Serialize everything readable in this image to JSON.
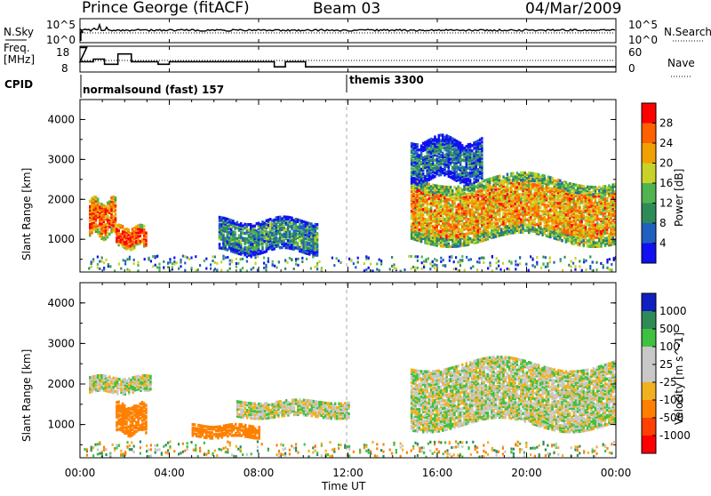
{
  "header": {
    "station": "Prince George (fitACF)",
    "beam": "Beam 03",
    "date": "04/Mar/2009"
  },
  "noise_panel": {
    "left_label": "N.Sky",
    "right_label": "N.Search",
    "left_ticks": [
      "10^5",
      "10^0"
    ],
    "right_ticks": [
      "10^5",
      "10^0"
    ]
  },
  "freq_panel": {
    "left_label_1": "Freq.",
    "left_label_2": "[MHz]",
    "right_label": "Nave",
    "left_ticks": [
      "18",
      "8"
    ],
    "right_ticks": [
      "60",
      "0"
    ]
  },
  "cpid": {
    "label": "CPID",
    "programs": [
      {
        "name": "normalsound (fast) 157",
        "start_hour": 0
      },
      {
        "name": "themis 3300",
        "start_hour": 12
      }
    ]
  },
  "chart_data": [
    {
      "type": "heatmap",
      "parameter": "Power",
      "ylabel": "Slant Range [km]",
      "xlabel": "Time UT",
      "ylim": [
        180,
        4500
      ],
      "yticks": [
        1000,
        2000,
        3000,
        4000
      ],
      "xlim_hours": [
        0,
        24
      ],
      "xticks": [
        "00:00",
        "04:00",
        "08:00",
        "12:00",
        "16:00",
        "20:00",
        "00:00"
      ],
      "colorbar": {
        "label": "Power [dB]",
        "ticks": [
          "4",
          "8",
          "12",
          "16",
          "20",
          "24",
          "28"
        ],
        "colors": [
          "#1010f0",
          "#2060c0",
          "#2e8b57",
          "#50b450",
          "#c8d228",
          "#f0a000",
          "#ff6000",
          "#ff0000"
        ]
      },
      "regions": [
        {
          "t": [
            0.4,
            1.6
          ],
          "range": [
            1100,
            2000
          ],
          "power_db": 26
        },
        {
          "t": [
            1.6,
            3.0
          ],
          "range": [
            800,
            1300
          ],
          "power_db": 28
        },
        {
          "t": [
            6.2,
            10.6
          ],
          "range": [
            700,
            1500
          ],
          "power_db": 10
        },
        {
          "t": [
            14.8,
            24.0
          ],
          "range": [
            1000,
            2500
          ],
          "power_db": 22
        },
        {
          "t": [
            14.8,
            18.0
          ],
          "range": [
            2500,
            3500
          ],
          "power_db": 8
        }
      ]
    },
    {
      "type": "heatmap",
      "parameter": "Velocity",
      "ylabel": "Slant Range [km]",
      "xlabel": "Time UT",
      "ylim": [
        180,
        4500
      ],
      "yticks": [
        1000,
        2000,
        3000,
        4000
      ],
      "xlim_hours": [
        0,
        24
      ],
      "xticks": [
        "00:00",
        "04:00",
        "08:00",
        "12:00",
        "16:00",
        "20:00",
        "00:00"
      ],
      "colorbar": {
        "label": "Velocity [m s^-1]",
        "ticks": [
          "1000",
          "500",
          "100",
          "25",
          "-25",
          "-100",
          "-500",
          "-1000"
        ],
        "colors": [
          "#1020c0",
          "#2e8b57",
          "#40c040",
          "#c8c8c8",
          "#c8c8c8",
          "#f0b020",
          "#ff8000",
          "#ff4000",
          "#ff0000"
        ]
      },
      "regions": [
        {
          "t": [
            0.4,
            3.2
          ],
          "range": [
            1800,
            2200
          ],
          "velocity": 0
        },
        {
          "t": [
            1.6,
            3.0
          ],
          "range": [
            800,
            1500
          ],
          "velocity": -300
        },
        {
          "t": [
            5.0,
            8.0
          ],
          "range": [
            700,
            1000
          ],
          "velocity": -300
        },
        {
          "t": [
            7.0,
            12.0
          ],
          "range": [
            1200,
            1600
          ],
          "velocity": 0
        },
        {
          "t": [
            14.8,
            24.0
          ],
          "range": [
            1000,
            2500
          ],
          "velocity": 0
        }
      ]
    }
  ]
}
